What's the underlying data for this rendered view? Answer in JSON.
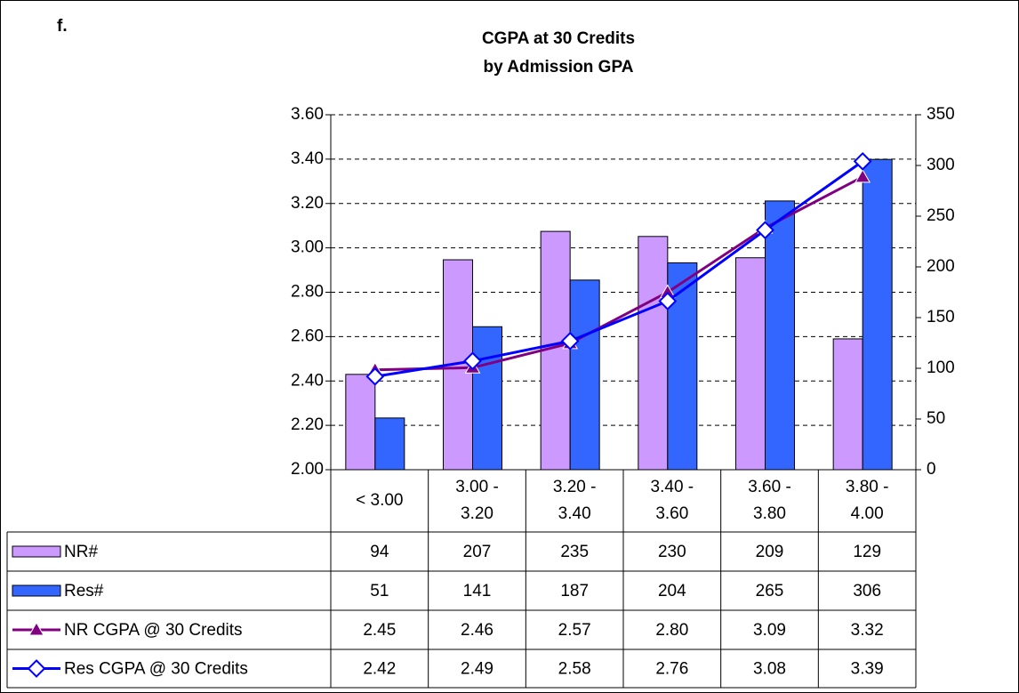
{
  "chart_data": {
    "type": "bar-line-table",
    "panel_label": "f.",
    "title": "CGPA at 30 Credits",
    "subtitle": "by Admission GPA",
    "categories": [
      "< 3.00",
      "3.00 - 3.20",
      "3.20 - 3.40",
      "3.40 - 3.60",
      "3.60 - 3.80",
      "3.80 - 4.00"
    ],
    "series": [
      {
        "name": "NR#",
        "type": "bar",
        "axis": "y2",
        "color": "#cc99ff",
        "values": [
          94,
          207,
          235,
          230,
          209,
          129
        ]
      },
      {
        "name": "Res#",
        "type": "bar",
        "axis": "y2",
        "color": "#3366ff",
        "values": [
          51,
          141,
          187,
          204,
          265,
          306
        ]
      },
      {
        "name": "NR CGPA @ 30 Credits",
        "type": "line",
        "marker": "triangle",
        "color": "#800080",
        "values": [
          2.45,
          2.46,
          2.57,
          2.8,
          3.09,
          3.32
        ],
        "value_labels": [
          "2.45",
          "2.46",
          "2.57",
          "2.80",
          "3.09",
          "3.32"
        ]
      },
      {
        "name": "Res CGPA @ 30 Credits",
        "type": "line",
        "marker": "diamond",
        "color": "#0000ff",
        "values": [
          2.42,
          2.49,
          2.58,
          2.76,
          3.08,
          3.39
        ],
        "value_labels": [
          "2.42",
          "2.49",
          "2.58",
          "2.76",
          "3.08",
          "3.39"
        ]
      }
    ],
    "ylim": [
      2.0,
      3.6
    ],
    "yticks": [
      {
        "value": 2.0,
        "label": "2.00"
      },
      {
        "value": 2.2,
        "label": "2.20"
      },
      {
        "value": 2.4,
        "label": "2.40"
      },
      {
        "value": 2.6,
        "label": "2.60"
      },
      {
        "value": 2.8,
        "label": "2.80"
      },
      {
        "value": 3.0,
        "label": "3.00"
      },
      {
        "value": 3.2,
        "label": "3.20"
      },
      {
        "value": 3.4,
        "label": "3.40"
      },
      {
        "value": 3.6,
        "label": "3.60"
      }
    ],
    "y2lim": [
      0,
      350
    ],
    "y2ticks": [
      0,
      50,
      100,
      150,
      200,
      250,
      300,
      350
    ],
    "grid": true
  }
}
